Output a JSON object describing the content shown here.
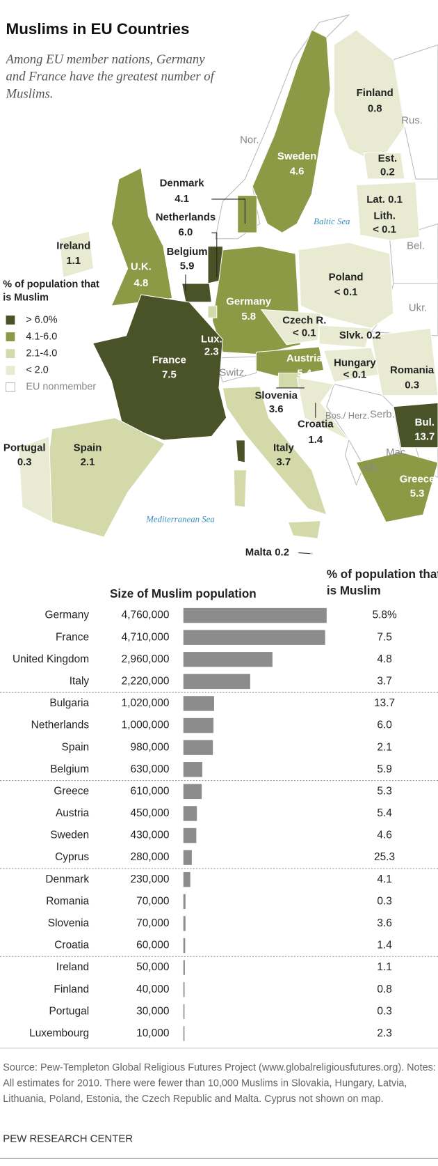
{
  "title": "Muslims in EU Countries",
  "subtitle": "Among EU member nations, Germany and France have the greatest number of Muslims.",
  "map": {
    "legend_title": "% of population that is Muslim",
    "legend": [
      {
        "label": "> 6.0%",
        "color": "#4a5228"
      },
      {
        "label": "4.1-6.0",
        "color": "#8c9a45"
      },
      {
        "label": "2.1-4.0",
        "color": "#d3d9a9"
      },
      {
        "label": "< 2.0",
        "color": "#e8ebd1"
      },
      {
        "label": "EU nonmember",
        "color": "#ffffff"
      }
    ],
    "countries": [
      {
        "name": "Finland",
        "value": "0.8"
      },
      {
        "name": "Est.",
        "value": "0.2"
      },
      {
        "name": "Lat.",
        "value": "0.1"
      },
      {
        "name": "Lith.",
        "value": "< 0.1"
      },
      {
        "name": "Sweden",
        "value": "4.6"
      },
      {
        "name": "Denmark",
        "value": "4.1"
      },
      {
        "name": "Netherlands",
        "value": "6.0"
      },
      {
        "name": "Belgium",
        "value": "5.9"
      },
      {
        "name": "Ireland",
        "value": "1.1"
      },
      {
        "name": "U.K.",
        "value": "4.8"
      },
      {
        "name": "Germany",
        "value": "5.8"
      },
      {
        "name": "Poland",
        "value": "< 0.1"
      },
      {
        "name": "Czech R.",
        "value": "< 0.1"
      },
      {
        "name": "Slvk.",
        "value": "0.2"
      },
      {
        "name": "Lux.",
        "value": "2.3"
      },
      {
        "name": "France",
        "value": "7.5"
      },
      {
        "name": "Austria",
        "value": "5.4"
      },
      {
        "name": "Hungary",
        "value": "< 0.1"
      },
      {
        "name": "Romania",
        "value": "0.3"
      },
      {
        "name": "Slovenia",
        "value": "3.6"
      },
      {
        "name": "Croatia",
        "value": "1.4"
      },
      {
        "name": "Bul.",
        "value": "13.7"
      },
      {
        "name": "Portugal",
        "value": "0.3"
      },
      {
        "name": "Spain",
        "value": "2.1"
      },
      {
        "name": "Italy",
        "value": "3.7"
      },
      {
        "name": "Greece",
        "value": "5.3"
      },
      {
        "name": "Malta",
        "value": "0.2"
      }
    ],
    "nonmembers": [
      "Nor.",
      "Rus.",
      "Bel.",
      "Ukr.",
      "Switz.",
      "Bos./ Herz.",
      "Serb.",
      "Mac.",
      "Alb."
    ],
    "seas": [
      "Baltic Sea",
      "Mediterranean Sea"
    ]
  },
  "chart_data": {
    "type": "bar",
    "orientation": "horizontal",
    "categories": [
      "Germany",
      "France",
      "United Kingdom",
      "Italy",
      "Bulgaria",
      "Netherlands",
      "Spain",
      "Belgium",
      "Greece",
      "Austria",
      "Sweden",
      "Cyprus",
      "Denmark",
      "Romania",
      "Slovenia",
      "Croatia",
      "Ireland",
      "Finland",
      "Portugal",
      "Luxembourg"
    ],
    "series": [
      {
        "name": "Size of Muslim population",
        "color": "#8c8c8c",
        "values": [
          4760000,
          4710000,
          2960000,
          2220000,
          1020000,
          1000000,
          980000,
          630000,
          610000,
          450000,
          430000,
          280000,
          230000,
          70000,
          70000,
          60000,
          50000,
          40000,
          30000,
          10000
        ],
        "value_labels": [
          "4,760,000",
          "4,710,000",
          "2,960,000",
          "2,220,000",
          "1,020,000",
          "1,000,000",
          "980,000",
          "630,000",
          "610,000",
          "450,000",
          "430,000",
          "280,000",
          "230,000",
          "70,000",
          "70,000",
          "60,000",
          "50,000",
          "40,000",
          "30,000",
          "10,000"
        ]
      }
    ],
    "xlim": [
      0,
      4760000
    ],
    "percent_header": "% of population that is Muslim",
    "percent_labels": [
      "5.8%",
      "7.5",
      "4.8",
      "3.7",
      "13.7",
      "6.0",
      "2.1",
      "5.9",
      "5.3",
      "5.4",
      "4.6",
      "25.3",
      "4.1",
      "0.3",
      "3.6",
      "1.4",
      "1.1",
      "0.8",
      "0.3",
      "2.3"
    ]
  },
  "source": "Source: Pew-Templeton Global Religious Futures Project (www.globalreligiousfutures.org). Notes: All estimates for 2010. There were fewer than 10,000 Muslims in Slovakia, Hungary, Latvia, Lithuania, Poland, Estonia, the Czech Republic and Malta. Cyprus not shown on map.",
  "credit": "PEW RESEARCH CENTER"
}
